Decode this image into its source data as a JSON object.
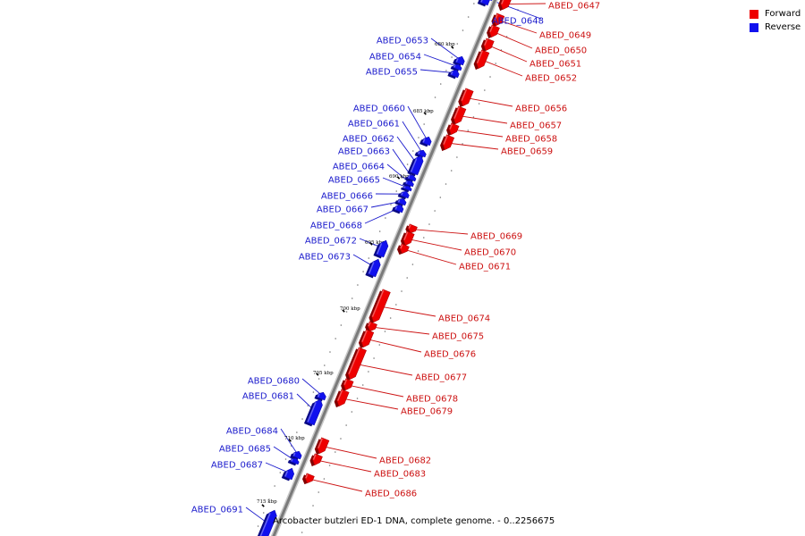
{
  "legend": [
    {
      "label": "Forward",
      "color": "#ee0000"
    },
    {
      "label": "Reverse",
      "color": "#1111ee"
    }
  ],
  "caption": "Arcobacter butzleri ED-1 DNA, complete genome. - 0..2256675",
  "colors": {
    "forward": "#ee0000",
    "reverse": "#1111ee",
    "backbone": "#7a7a7a",
    "reverse_label": "#1a1acc",
    "forward_label": "#cc1111"
  },
  "scale_ticks": [
    "680 kbp",
    "685 kbp",
    "690 kbp",
    "695 kbp",
    "700 kbp",
    "705 kbp",
    "710 kbp",
    "715 kbp"
  ],
  "genes": [
    {
      "id": "ABED_0647",
      "strand": "forward"
    },
    {
      "id": "ABED_0648",
      "strand": "reverse"
    },
    {
      "id": "ABED_0649",
      "strand": "forward"
    },
    {
      "id": "ABED_0650",
      "strand": "forward"
    },
    {
      "id": "ABED_0651",
      "strand": "forward"
    },
    {
      "id": "ABED_0652",
      "strand": "forward"
    },
    {
      "id": "ABED_0653",
      "strand": "reverse"
    },
    {
      "id": "ABED_0654",
      "strand": "reverse"
    },
    {
      "id": "ABED_0655",
      "strand": "reverse"
    },
    {
      "id": "ABED_0656",
      "strand": "forward"
    },
    {
      "id": "ABED_0657",
      "strand": "forward"
    },
    {
      "id": "ABED_0658",
      "strand": "forward"
    },
    {
      "id": "ABED_0659",
      "strand": "forward"
    },
    {
      "id": "ABED_0660",
      "strand": "reverse"
    },
    {
      "id": "ABED_0661",
      "strand": "reverse"
    },
    {
      "id": "ABED_0662",
      "strand": "reverse"
    },
    {
      "id": "ABED_0663",
      "strand": "reverse"
    },
    {
      "id": "ABED_0664",
      "strand": "reverse"
    },
    {
      "id": "ABED_0665",
      "strand": "reverse"
    },
    {
      "id": "ABED_0666",
      "strand": "reverse"
    },
    {
      "id": "ABED_0667",
      "strand": "reverse"
    },
    {
      "id": "ABED_0668",
      "strand": "reverse"
    },
    {
      "id": "ABED_0669",
      "strand": "forward"
    },
    {
      "id": "ABED_0670",
      "strand": "forward"
    },
    {
      "id": "ABED_0671",
      "strand": "forward"
    },
    {
      "id": "ABED_0672",
      "strand": "reverse"
    },
    {
      "id": "ABED_0673",
      "strand": "reverse"
    },
    {
      "id": "ABED_0674",
      "strand": "forward"
    },
    {
      "id": "ABED_0675",
      "strand": "forward"
    },
    {
      "id": "ABED_0676",
      "strand": "forward"
    },
    {
      "id": "ABED_0677",
      "strand": "forward"
    },
    {
      "id": "ABED_0678",
      "strand": "forward"
    },
    {
      "id": "ABED_0679",
      "strand": "forward"
    },
    {
      "id": "ABED_0680",
      "strand": "reverse"
    },
    {
      "id": "ABED_0681",
      "strand": "reverse"
    },
    {
      "id": "ABED_0682",
      "strand": "forward"
    },
    {
      "id": "ABED_0683",
      "strand": "forward"
    },
    {
      "id": "ABED_0684",
      "strand": "reverse"
    },
    {
      "id": "ABED_0685",
      "strand": "reverse"
    },
    {
      "id": "ABED_0686",
      "strand": "forward"
    },
    {
      "id": "ABED_0687",
      "strand": "reverse"
    },
    {
      "id": "ABED_0691",
      "strand": "reverse"
    }
  ]
}
